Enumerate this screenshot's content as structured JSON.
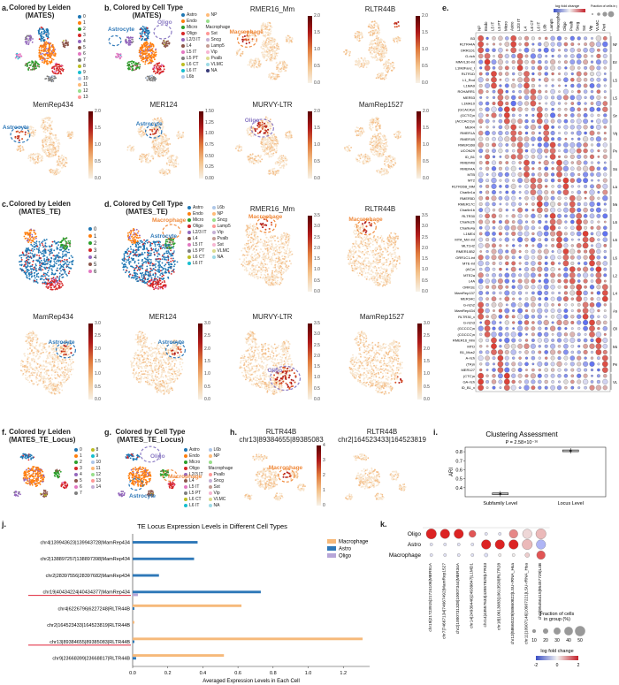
{
  "panels": {
    "a": {
      "letter": "a.",
      "title": "Colored by Leiden\n(MATES)",
      "legend": [
        "0",
        "1",
        "2",
        "3",
        "4",
        "5",
        "6",
        "7",
        "8",
        "9",
        "10",
        "11",
        "12",
        "13"
      ]
    },
    "b": {
      "letter": "b.",
      "title": "Colored by Cell Type\n(MATES)",
      "legend": [
        "Astro",
        "Endo",
        "Micro",
        "Oligo",
        "L2/3 IT",
        "L4",
        "L5 IT",
        "L5 PT",
        "L6 CT",
        "L6 IT",
        "L6b",
        "NP",
        "Macrophage",
        "Sst",
        "Sncg",
        "Lamp5",
        "Vip",
        "Pvalb",
        "VLMC",
        "NA"
      ],
      "annotations": [
        "Astrocyte",
        "Oligo"
      ]
    },
    "b_umaps": [
      {
        "title": "RMER16_Mm",
        "ticks": [
          "2.0",
          "1.5",
          "1.0",
          "0.5",
          "0.0"
        ],
        "annotation": "Macrophage"
      },
      {
        "title": "RLTR44B",
        "ticks": [
          "2.0",
          "1.5",
          "1.0",
          "0.5",
          "0.0"
        ],
        "annotation": ""
      },
      {
        "title": "MemRep434",
        "ticks": [
          "2.0",
          "1.5",
          "1.0",
          "0.5",
          "0.0"
        ],
        "annotation": "Astrocyte"
      },
      {
        "title": "MER124",
        "ticks": [
          "1.50",
          "1.25",
          "1.00",
          "0.75",
          "0.50",
          "0.25",
          "0.00"
        ],
        "annotation": "Astrocyte"
      },
      {
        "title": "MURVY-LTR",
        "ticks": [
          "2.0",
          "1.5",
          "1.0",
          "0.5",
          "0.0"
        ],
        "annotation": "Oligo"
      },
      {
        "title": "MamRep1527",
        "ticks": [
          "2.0",
          "1.5",
          "1.0",
          "0.5",
          "0.0"
        ],
        "annotation": ""
      }
    ],
    "c": {
      "letter": "c.",
      "title": "Colored by Leiden\n(MATES_TE)",
      "legend": [
        "0",
        "1",
        "2",
        "3",
        "4",
        "5",
        "6"
      ]
    },
    "d": {
      "letter": "d.",
      "title": "Colored by Cell Type\n(MATES_TE)",
      "legend": [
        "Astro",
        "Endo",
        "Micro",
        "Oligo",
        "L2/3 IT",
        "L4",
        "L5 IT",
        "L5 PT",
        "L6 CT",
        "L6 IT",
        "L6b",
        "NP",
        "Sncg",
        "Lamp5",
        "Vip",
        "Pvalb",
        "Sst",
        "VLMC",
        "NA"
      ],
      "annotations": [
        "Astrocyte",
        "Macrophage"
      ]
    },
    "d_umaps": [
      {
        "title": "RMER16_Mm",
        "ticks": [
          "3.5",
          "3.0",
          "2.5",
          "2.0",
          "1.5",
          "1.0",
          "0.5",
          "0.0"
        ],
        "annotation": "Macrophage"
      },
      {
        "title": "RLTR44B",
        "ticks": [
          "3.5",
          "3.0",
          "2.5",
          "2.0",
          "1.5",
          "1.0",
          "0.5",
          "0.0"
        ],
        "annotation": "Macrophage"
      },
      {
        "title": "MamRep434",
        "ticks": [
          "3.0",
          "2.5",
          "2.0",
          "1.5",
          "1.0",
          "0.5",
          "0.0"
        ],
        "annotation": "Astrocyte"
      },
      {
        "title": "MER124",
        "ticks": [
          "3.0",
          "2.5",
          "2.0",
          "1.5",
          "1.0",
          "0.5",
          "0.0"
        ],
        "annotation": "Astrocyte"
      },
      {
        "title": "MURVY-LTR",
        "ticks": [
          "3.5",
          "3.0",
          "2.5",
          "2.0",
          "1.5",
          "1.0",
          "0.5",
          "0.0"
        ],
        "annotation": "Oligo"
      },
      {
        "title": "MamRep1527",
        "ticks": [
          "3.0",
          "2.5",
          "2.0",
          "1.5",
          "1.0",
          "0.5",
          "0.0"
        ],
        "annotation": ""
      }
    ],
    "e": {
      "letter": "e.",
      "legend_title": "log fold change",
      "size_title": "Fraction of cells in group (%)",
      "columns": [
        "NP",
        "Endo",
        "L5 IT",
        "L5 PT",
        "Micro",
        "Astro",
        "L2/3 IT",
        "L4",
        "L6 CT",
        "L6 IT",
        "L6b",
        "Lamp5",
        "Macrophage",
        "Oligo",
        "Pvalb",
        "Sncg",
        "Sst",
        "Vip",
        "VLMC",
        "Peri"
      ],
      "groups": [
        "NP",
        "Endo",
        "L5 IT",
        "L5 PT",
        "Sncg",
        "Vip",
        "Pvalb",
        "Sst",
        "Lamp5",
        "Meis2",
        "L6 IT",
        "L6 CT",
        "L6b",
        "L2/3 IT",
        "L4",
        "Astro",
        "Oligo",
        "Macrophage",
        "Peri",
        "VLMC"
      ],
      "rows": [
        "B3",
        "RLTR44A",
        "ORR1D1",
        "G-rich",
        "MMVL30-int",
        "L1MdFanc_I",
        "RLTR1D",
        "L1_Rod",
        "L1MA9",
        "ROHARR1",
        "MER53",
        "L1MA10",
        "(GCACA)n",
        "(GCTG)n",
        "(ACCACG)n",
        "MER4",
        "RMER1A",
        "RMER1B",
        "RMER16B",
        "UCON29",
        "ID_B1",
        "RMER4B",
        "RMER4A",
        "MTB",
        "MT2",
        "RLTR26B_MM",
        "Charlie1a",
        "RMER5D",
        "RMER17C",
        "Charlie1b",
        "RLTR30",
        "Charlie2b",
        "Charlie4a",
        "L1ME4",
        "MTA_Mm-int",
        "MLT1H2",
        "RMER10B2",
        "ORR1C1-int",
        "MTE-int",
        "(AC)n",
        "MTE2a",
        "L4A",
        "ORR1E",
        "MamRep137",
        "MER34C",
        "G-rich2",
        "MamRep434",
        "RLTR30_x",
        "G-rich3",
        "(GCCCC)n",
        "(CGCCC)n",
        "RMER16_Mm",
        "MTD",
        "B1_Mus2",
        "A-rich",
        "(TA)n",
        "MER127",
        "(CTC)n",
        "GA-rich",
        "ID_B1_x"
      ]
    },
    "f": {
      "letter": "f.",
      "title": "Colored by Leiden\n(MATES_TE_Locus)",
      "legend": [
        "0",
        "1",
        "2",
        "3",
        "4",
        "5",
        "6",
        "7",
        "8",
        "9",
        "10",
        "11",
        "12",
        "13",
        "14"
      ]
    },
    "g": {
      "letter": "g.",
      "title": "Colored by Cell Type\n(MATES_TE_Locus)",
      "legend": [
        "Astro",
        "Endo",
        "Micro",
        "Oligo",
        "L2/3 IT",
        "L4",
        "L5 IT",
        "L5 PT",
        "L6 CT",
        "L6 IT",
        "L6b",
        "NP",
        "Macrophage",
        "Pvalb",
        "Sncg",
        "Sst",
        "Vip",
        "VLMC",
        "NA"
      ],
      "annotations": [
        "Oligo",
        "Macrophage",
        "Astrocyte"
      ]
    },
    "h": {
      "letter": "h.",
      "umaps": [
        {
          "title": "RLTR44B\nchr13|89384655|89385083",
          "ticks": [
            "4",
            "3",
            "2",
            "1",
            "0"
          ],
          "annotation": "Macrophage"
        },
        {
          "title": "RLTR44B\nchr2|164523433|164523819",
          "ticks": [],
          "annotation": ""
        }
      ]
    },
    "i": {
      "letter": "i.",
      "title": "Clustering Assessment",
      "pvalue": "P = 2.58×10⁻¹⁶"
    },
    "j": {
      "letter": "j."
    },
    "k": {
      "letter": "k.",
      "size_title": "Fraction of cells\nin group (%)",
      "size_labels": [
        "10",
        "20",
        "30",
        "40",
        "50"
      ],
      "lfc_title": "log fold change",
      "lfc_ticks": [
        "-2",
        "0",
        "2"
      ]
    }
  },
  "chart_data": [
    {
      "type": "box",
      "title": "Clustering Assessment",
      "subtitle": "P = 2.58×10⁻¹⁶",
      "categories": [
        "Subfamily Level",
        "Locus Level"
      ],
      "ylabel": "ARI",
      "ylim": [
        0.3,
        0.85
      ],
      "yticks": [
        0.4,
        0.5,
        0.6,
        0.7,
        0.8
      ],
      "series": [
        {
          "values": [
            0.333,
            0.81
          ]
        }
      ]
    },
    {
      "type": "bar",
      "orientation": "horizontal",
      "title": "TE Locus Expression Levels in Different Cell Types",
      "xlabel": "Averaged Expression Levels in Each Cell",
      "ylabel": "",
      "xlim": [
        0,
        1.35
      ],
      "xticks": [
        0.0,
        0.2,
        0.4,
        0.6,
        0.8,
        1.0,
        1.2
      ],
      "categories": [
        "chr4|139943623|139943728|MamRep434",
        "chr2|138897257|138897398|MamRep434",
        "chr2|28397556|28397682|MamRep434",
        "chr19|40434224|40434377|MamRep434",
        "chr4|6226796|6227248|RLTR44B",
        "chr2|164523433|164523819|RLTR44B",
        "chr13|89384655|89385083|RLTR44B",
        "chr9|23668399|23668817|RLTR44B"
      ],
      "highlighted": [
        "chr19|40434224|40434377|MamRep434",
        "chr13|89384655|89385083|RLTR44B"
      ],
      "legend_position": "top-right",
      "series": [
        {
          "name": "Macrophage",
          "color": "#f6b97a",
          "values": [
            0.0,
            0.0,
            0.0,
            0.0,
            0.62,
            0.01,
            1.31,
            0.52
          ]
        },
        {
          "name": "Astro",
          "color": "#2e78b8",
          "values": [
            0.37,
            0.35,
            0.15,
            0.73,
            0.01,
            0.0,
            0.01,
            0.02
          ]
        },
        {
          "name": "Oligo",
          "color": "#b7a6d8",
          "values": [
            0.0,
            0.0,
            0.0,
            0.03,
            0.0,
            0.0,
            0.0,
            0.0
          ]
        }
      ]
    },
    {
      "type": "dotplot",
      "rows": [
        "Oligo",
        "Astro",
        "Macrophage"
      ],
      "columns": [
        "chr19|21723915|21724106|MER91A",
        "chr7|74667134|74667492|MamRep1527",
        "chr2|1000731328|10007344|MER34A",
        "chr14|24939446|24939847|L1MD1",
        "chr14|43557633|43557829|LTR33",
        "chr18|10613083|10613530|RLTR28",
        "chr13|58660329|58660822|LSU-rRNA_Hsa",
        "chr11|10907146|10907221|LSU-rRNA_Hsa",
        "chr9|95456415|95457729|L4B"
      ],
      "lfc": [
        [
          2,
          2,
          2,
          1.5,
          -0.2,
          -0.2,
          1,
          0.2,
          0.5
        ],
        [
          -0.2,
          -0.2,
          -0.2,
          -0.2,
          2,
          2,
          2,
          0.5,
          -1.2
        ],
        [
          -0.2,
          -0.2,
          -0.2,
          -0.2,
          -0.3,
          0,
          0,
          0.3,
          1.5
        ]
      ],
      "fraction": [
        [
          50,
          45,
          45,
          30,
          5,
          5,
          40,
          45,
          50
        ],
        [
          5,
          5,
          5,
          5,
          45,
          45,
          45,
          50,
          45
        ],
        [
          5,
          5,
          5,
          5,
          10,
          5,
          5,
          15,
          40
        ]
      ]
    }
  ]
}
